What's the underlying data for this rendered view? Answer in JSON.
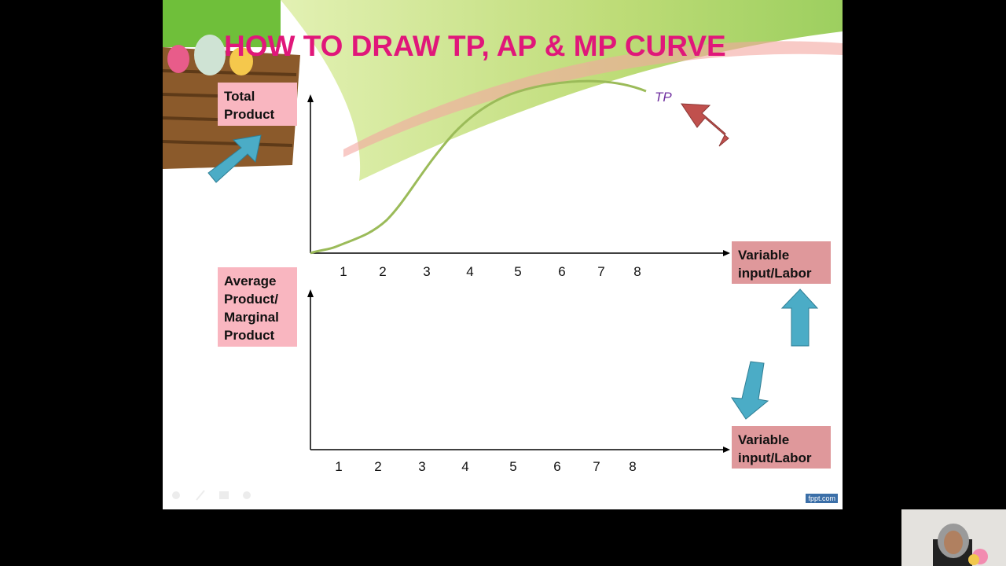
{
  "slide": {
    "title": "HOW TO DRAW TP, AP & MP CURVE",
    "top_chart": {
      "y_label": "Total Product",
      "x_label": "Variable input/Labor",
      "curve_label": "TP",
      "x_ticks": [
        "1",
        "2",
        "3",
        "4",
        "5",
        "6",
        "7",
        "8"
      ]
    },
    "bottom_chart": {
      "y_label": "Average Product/ Marginal Product",
      "x_label": "Variable input/Labor",
      "x_ticks": [
        "1",
        "2",
        "3",
        "4",
        "5",
        "6",
        "7",
        "8"
      ]
    },
    "watermark": "fppt.com",
    "colors": {
      "title": "#e0177a",
      "curve": "#9bbb59",
      "tp_label": "#7030a0",
      "blue_arrow": "#4bacc6",
      "red_arrow": "#c0504d"
    }
  },
  "webcam": {
    "icon": "presenter-video"
  }
}
